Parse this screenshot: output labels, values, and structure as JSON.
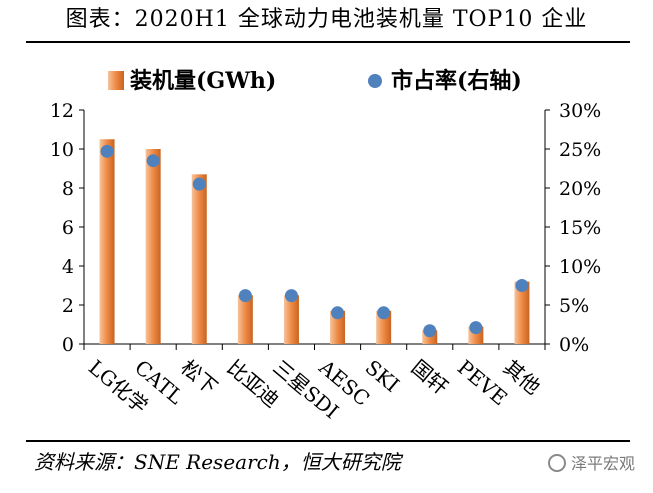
{
  "title": "图表：2020H1 全球动力电池装机量 TOP10 企业",
  "footer": "资料来源：SNE Research，恒大研究院",
  "watermark": "泽平宏观",
  "chart_data": {
    "type": "bar",
    "categories": [
      "LG化学",
      "CATL",
      "松下",
      "比亚迪",
      "三星SDI",
      "AESC",
      "SKI",
      "国轩",
      "PEVE",
      "其他"
    ],
    "series": [
      {
        "name": "装机量(GWh)",
        "type": "bar",
        "axis": "left",
        "values": [
          10.5,
          10.0,
          8.7,
          2.5,
          2.5,
          1.7,
          1.7,
          0.7,
          0.9,
          3.2
        ]
      },
      {
        "name": "市占率(右轴)",
        "type": "scatter",
        "axis": "right",
        "values": [
          24.7,
          23.5,
          20.5,
          6.2,
          6.2,
          4.0,
          4.0,
          1.7,
          2.1,
          7.5
        ]
      }
    ],
    "left_axis": {
      "ylim": [
        0,
        12
      ],
      "ticks": [
        "0",
        "2",
        "4",
        "6",
        "8",
        "10",
        "12"
      ]
    },
    "right_axis": {
      "ylim": [
        0,
        30
      ],
      "ticks": [
        "0%",
        "5%",
        "10%",
        "15%",
        "20%",
        "25%",
        "30%"
      ]
    },
    "legend_position": "top",
    "grid": false,
    "colors": {
      "bar_light": "#f6c39b",
      "bar_mid": "#ee8a45",
      "bar_dark": "#c8641f",
      "dot": "#4f81bd",
      "axis": "#000000"
    }
  }
}
